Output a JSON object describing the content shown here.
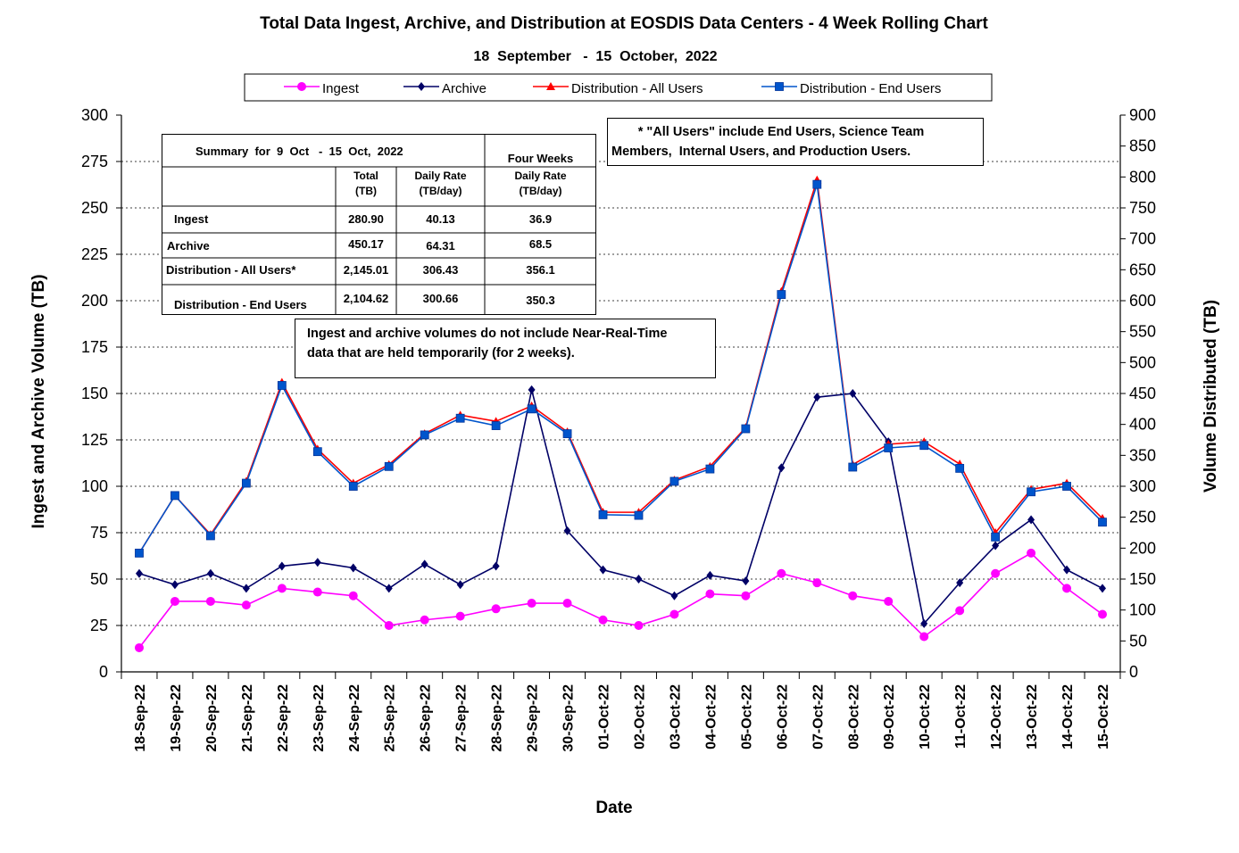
{
  "chart_data": {
    "type": "line",
    "title": "Total Data Ingest, Archive, and  Distribution at EOSDIS Data Centers - 4 Week Rolling Chart",
    "subtitle": "18  September   -  15  October,  2022",
    "xlabel": "Date",
    "ylabel_left": "Ingest and Archive Volume (TB)",
    "ylabel_right": "Volume Distributed (TB)",
    "ylim_left": [
      0,
      300
    ],
    "ylim_right": [
      0,
      900
    ],
    "yticks_left": [
      "0",
      "25",
      "50",
      "75",
      "100",
      "125",
      "150",
      "175",
      "200",
      "225",
      "250",
      "275",
      "300"
    ],
    "yticks_right": [
      "0",
      "50",
      "100",
      "150",
      "200",
      "250",
      "300",
      "350",
      "400",
      "450",
      "500",
      "550",
      "600",
      "650",
      "700",
      "750",
      "800",
      "850",
      "900"
    ],
    "grid": true,
    "legend_position": "top",
    "categories": [
      "18-Sep-22",
      "19-Sep-22",
      "20-Sep-22",
      "21-Sep-22",
      "22-Sep-22",
      "23-Sep-22",
      "24-Sep-22",
      "25-Sep-22",
      "26-Sep-22",
      "27-Sep-22",
      "28-Sep-22",
      "29-Sep-22",
      "30-Sep-22",
      "01-Oct-22",
      "02-Oct-22",
      "03-Oct-22",
      "04-Oct-22",
      "05-Oct-22",
      "06-Oct-22",
      "07-Oct-22",
      "08-Oct-22",
      "09-Oct-22",
      "10-Oct-22",
      "11-Oct-22",
      "12-Oct-22",
      "13-Oct-22",
      "14-Oct-22",
      "15-Oct-22"
    ],
    "series": [
      {
        "name": "Ingest",
        "axis": "left",
        "color": "#ff00ff",
        "marker": "circle",
        "values": [
          13,
          38,
          38,
          36,
          45,
          43,
          41,
          25,
          28,
          30,
          34,
          37,
          37,
          28,
          25,
          31,
          42,
          41,
          53,
          48,
          41,
          38,
          19,
          33,
          53,
          64,
          45,
          31
        ]
      },
      {
        "name": "Archive",
        "axis": "left",
        "color": "#000066",
        "marker": "diamond",
        "values": [
          53,
          47,
          53,
          45,
          57,
          59,
          56,
          45,
          58,
          47,
          57,
          152,
          76,
          55,
          50,
          41,
          52,
          49,
          110,
          148,
          150,
          124,
          26,
          48,
          68,
          82,
          55,
          45
        ]
      },
      {
        "name": "Distribution - All Users",
        "axis": "right",
        "color": "#ff0000",
        "marker": "triangle",
        "values": [
          192,
          285,
          222,
          308,
          468,
          360,
          305,
          335,
          385,
          415,
          405,
          430,
          388,
          258,
          258,
          310,
          332,
          395,
          615,
          795,
          335,
          368,
          372,
          336,
          225,
          295,
          305,
          248
        ]
      },
      {
        "name": "Distribution - End Users",
        "axis": "right",
        "color": "#0055cc",
        "marker": "square",
        "values": [
          192,
          285,
          220,
          305,
          463,
          356,
          300,
          332,
          383,
          410,
          398,
          425,
          385,
          254,
          253,
          308,
          328,
          393,
          610,
          788,
          331,
          362,
          366,
          329,
          218,
          291,
          300,
          242
        ]
      }
    ]
  },
  "summary_table": {
    "title": "Summary  for  9  Oct   -  15  Oct,  2022",
    "four_weeks": "Four Weeks",
    "col_total": [
      "Total",
      "(TB)"
    ],
    "col_daily": [
      "Daily Rate",
      "(TB/day)"
    ],
    "col_four": [
      "Daily Rate",
      "(TB/day)"
    ],
    "rows": [
      {
        "label": "Ingest",
        "total": "280.90",
        "daily": "40.13",
        "four": "36.9"
      },
      {
        "label": "Archive",
        "total": "450.17",
        "daily": "64.31",
        "four": "68.5"
      },
      {
        "label": "Distribution - All Users*",
        "total": "2,145.01",
        "daily": "306.43",
        "four": "356.1"
      },
      {
        "label": "Distribution - End Users",
        "total": "2,104.62",
        "daily": "300.66",
        "four": "350.3"
      }
    ]
  },
  "note_all_users": [
    "* \"All Users\" include End Users, Science Team",
    "Members,  Internal Users, and Production Users."
  ],
  "note_nrt": [
    "Ingest and archive volumes do not include Near-Real-Time",
    "data that are held temporarily (for 2 weeks)."
  ]
}
